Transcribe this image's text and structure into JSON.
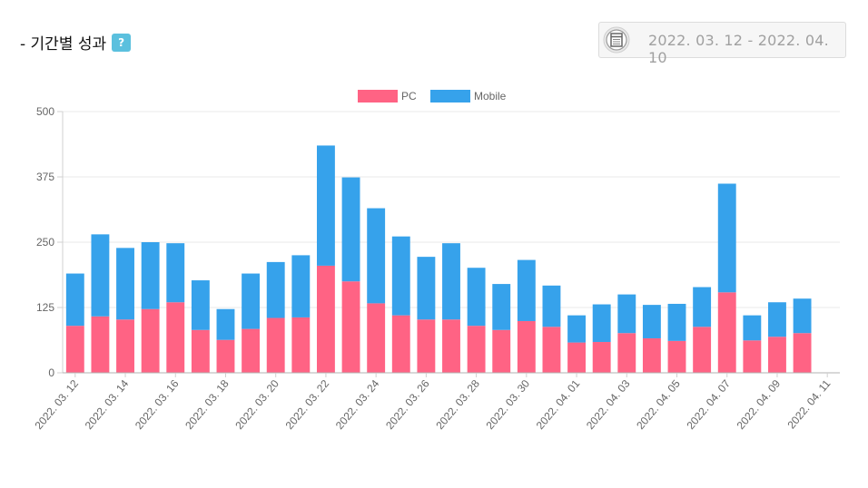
{
  "header": {
    "title": "- 기간별 성과",
    "help_label": "?",
    "date_range": "2022. 03. 12 - 2022. 04. 10",
    "date_icon": "calendar-icon"
  },
  "colors": {
    "pc": "#ff6384",
    "mobile": "#36a2eb",
    "help_badge": "#5bc0de"
  },
  "chart_data": {
    "type": "bar",
    "stacked": true,
    "legend_position": "top",
    "grid": true,
    "ylim": [
      0,
      500
    ],
    "yticks": [
      0,
      125,
      250,
      375,
      500
    ],
    "categories": [
      "2022. 03. 12",
      "2022. 03. 13",
      "2022. 03. 14",
      "2022. 03. 15",
      "2022. 03. 16",
      "2022. 03. 17",
      "2022. 03. 18",
      "2022. 03. 19",
      "2022. 03. 20",
      "2022. 03. 21",
      "2022. 03. 22",
      "2022. 03. 23",
      "2022. 03. 24",
      "2022. 03. 25",
      "2022. 03. 26",
      "2022. 03. 27",
      "2022. 03. 28",
      "2022. 03. 29",
      "2022. 03. 30",
      "2022. 03. 31",
      "2022. 04. 01",
      "2022. 04. 02",
      "2022. 04. 03",
      "2022. 04. 04",
      "2022. 04. 05",
      "2022. 04. 06",
      "2022. 04. 07",
      "2022. 04. 08",
      "2022. 04. 09",
      "2022. 04. 10",
      "2022. 04. 11"
    ],
    "xtick_labels": [
      "2022. 03. 12",
      "2022. 03. 14",
      "2022. 03. 16",
      "2022. 03. 18",
      "2022. 03. 20",
      "2022. 03. 22",
      "2022. 03. 24",
      "2022. 03. 26",
      "2022. 03. 28",
      "2022. 03. 30",
      "2022. 04. 01",
      "2022. 04. 03",
      "2022. 04. 05",
      "2022. 04. 07",
      "2022. 04. 09",
      "2022. 04. 11"
    ],
    "series": [
      {
        "name": "PC",
        "values": [
          90,
          108,
          102,
          122,
          135,
          82,
          63,
          84,
          105,
          106,
          205,
          175,
          133,
          110,
          102,
          102,
          90,
          82,
          99,
          88,
          58,
          59,
          76,
          66,
          61,
          88,
          154,
          62,
          69,
          76,
          0
        ]
      },
      {
        "name": "Mobile",
        "values": [
          100,
          157,
          137,
          128,
          113,
          95,
          59,
          106,
          107,
          119,
          230,
          199,
          182,
          151,
          120,
          146,
          111,
          88,
          117,
          79,
          52,
          72,
          74,
          64,
          71,
          76,
          208,
          48,
          66,
          66,
          0
        ]
      }
    ]
  }
}
